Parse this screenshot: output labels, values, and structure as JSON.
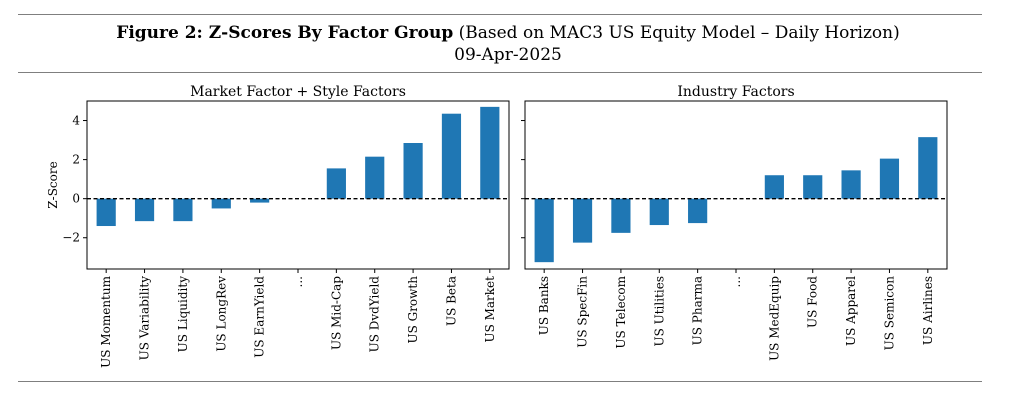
{
  "figure": {
    "title_bold": "Figure 2: Z-Scores By Factor Group",
    "title_rest": " (Based on MAC3 US Equity Model – Daily Horizon)",
    "date": "09-Apr-2025"
  },
  "chart_data": [
    {
      "type": "bar",
      "title": "Market Factor + Style Factors",
      "ylabel": "Z-Score",
      "ylim": [
        -3.6,
        5.0
      ],
      "yticks": [
        -2,
        0,
        2,
        4
      ],
      "reference_line": 0,
      "bar_color": "#1f77b4",
      "categories": [
        "US Momentum",
        "US Variability",
        "US Liquidity",
        "US LongRev",
        "US EarnYield",
        "...",
        "US Mid-Cap",
        "US DvdYield",
        "US Growth",
        "US Beta",
        "US Market"
      ],
      "values": [
        -1.4,
        -1.15,
        -1.15,
        -0.5,
        -0.2,
        null,
        1.55,
        2.15,
        2.85,
        4.35,
        4.7
      ]
    },
    {
      "type": "bar",
      "title": "Industry Factors",
      "ylabel": "",
      "ylim": [
        -3.6,
        5.0
      ],
      "yticks": [],
      "reference_line": 0,
      "bar_color": "#1f77b4",
      "categories": [
        "US Banks",
        "US SpecFin",
        "US Telecom",
        "US Utilities",
        "US Pharma",
        "...",
        "US MedEquip",
        "US Food",
        "US Apparel",
        "US Semicon",
        "US Airlines"
      ],
      "values": [
        -3.25,
        -2.25,
        -1.75,
        -1.35,
        -1.25,
        null,
        1.2,
        1.2,
        1.45,
        2.05,
        3.15
      ]
    }
  ]
}
